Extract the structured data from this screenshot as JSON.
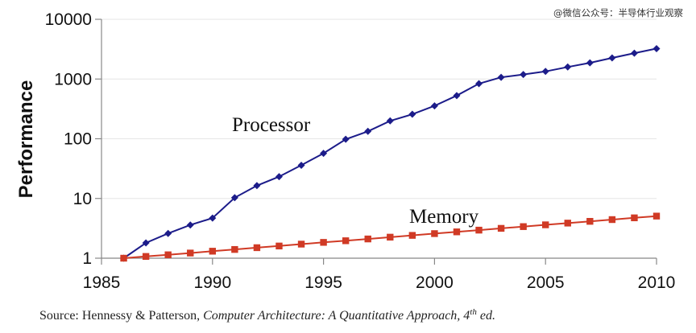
{
  "watermark": "@微信公众号：半导体行业观察",
  "source": {
    "prefix": "Source: Hennessy & Patterson, ",
    "title": "Computer Architecture: A Quantitative Approach, 4",
    "sup": "th",
    "suffix": " ed."
  },
  "chart_data": {
    "type": "line",
    "title": "",
    "xlabel": "",
    "ylabel": "Performance",
    "yscale": "log",
    "xlim": [
      1985,
      2010
    ],
    "ylim": [
      1,
      10000
    ],
    "x_ticks": [
      1985,
      1990,
      1995,
      2000,
      2005,
      2010
    ],
    "y_ticks": [
      1,
      10,
      100,
      1000,
      10000
    ],
    "y_tick_labels": [
      "1",
      "10",
      "100",
      "1000",
      "10000"
    ],
    "x": [
      1986,
      1987,
      1988,
      1989,
      1990,
      1991,
      1992,
      1993,
      1994,
      1995,
      1996,
      1997,
      1998,
      1999,
      2000,
      2001,
      2002,
      2003,
      2004,
      2005,
      2006,
      2007,
      2008,
      2009,
      2010
    ],
    "series": [
      {
        "name": "Processor",
        "color": "#1c1c8a",
        "marker": "diamond",
        "values": [
          1,
          1.8,
          2.6,
          3.6,
          4.7,
          10.3,
          16.4,
          23.2,
          36,
          57,
          98,
          133,
          199,
          257,
          355,
          528,
          837,
          1070,
          1190,
          1340,
          1590,
          1870,
          2260,
          2710,
          3230
        ]
      },
      {
        "name": "Memory",
        "color": "#d03a25",
        "marker": "square",
        "values": [
          1,
          1.07,
          1.14,
          1.22,
          1.31,
          1.4,
          1.5,
          1.6,
          1.72,
          1.84,
          1.96,
          2.1,
          2.25,
          2.41,
          2.58,
          2.76,
          2.95,
          3.16,
          3.38,
          3.62,
          3.87,
          4.14,
          4.43,
          4.74,
          5.07
        ]
      }
    ]
  }
}
